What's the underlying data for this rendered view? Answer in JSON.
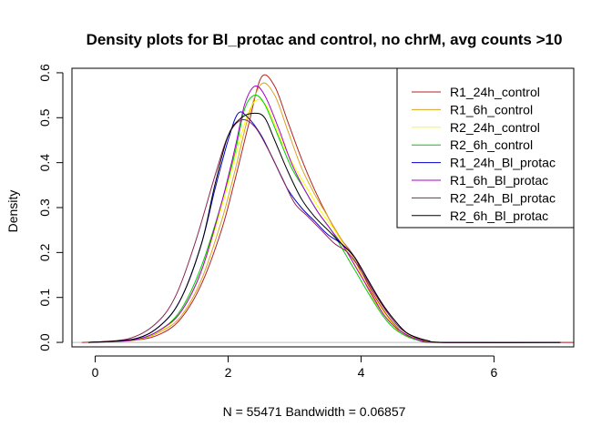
{
  "chart_data": {
    "type": "line",
    "title": "Density plots for Bl_protac and control, no chrM, avg counts >10",
    "xlabel": "N = 55471   Bandwidth = 0.06857",
    "ylabel": "Density",
    "xlim": [
      -0.35,
      7.2
    ],
    "ylim": [
      -0.01,
      0.61
    ],
    "x_ticks": [
      0,
      2,
      4,
      6
    ],
    "x_tick_labels": [
      "0",
      "2",
      "4",
      "6"
    ],
    "y_ticks": [
      0.0,
      0.1,
      0.2,
      0.3,
      0.4,
      0.5,
      0.6
    ],
    "y_tick_labels": [
      "0.0",
      "0.1",
      "0.2",
      "0.3",
      "0.4",
      "0.5",
      "0.6"
    ],
    "grid": false,
    "baseline": 0,
    "legend_position": "top-right",
    "series": [
      {
        "name": "R1_24h_control",
        "color": "#B22222",
        "points": [
          [
            -0.2,
            0
          ],
          [
            0.6,
            0.005
          ],
          [
            1.0,
            0.02
          ],
          [
            1.3,
            0.055
          ],
          [
            1.6,
            0.13
          ],
          [
            1.9,
            0.25
          ],
          [
            2.1,
            0.36
          ],
          [
            2.3,
            0.48
          ],
          [
            2.5,
            0.59
          ],
          [
            2.7,
            0.57
          ],
          [
            2.9,
            0.49
          ],
          [
            3.1,
            0.41
          ],
          [
            3.3,
            0.34
          ],
          [
            3.5,
            0.28
          ],
          [
            3.7,
            0.23
          ],
          [
            3.9,
            0.19
          ],
          [
            4.1,
            0.13
          ],
          [
            4.3,
            0.08
          ],
          [
            4.5,
            0.04
          ],
          [
            4.7,
            0.015
          ],
          [
            5.0,
            0.003
          ],
          [
            5.3,
            0
          ],
          [
            7.2,
            0
          ]
        ]
      },
      {
        "name": "R1_6h_control",
        "color": "#DAA520",
        "points": [
          [
            -0.1,
            0
          ],
          [
            0.6,
            0.005
          ],
          [
            1.0,
            0.025
          ],
          [
            1.3,
            0.06
          ],
          [
            1.6,
            0.14
          ],
          [
            1.9,
            0.27
          ],
          [
            2.1,
            0.38
          ],
          [
            2.3,
            0.5
          ],
          [
            2.5,
            0.575
          ],
          [
            2.7,
            0.55
          ],
          [
            2.9,
            0.47
          ],
          [
            3.1,
            0.39
          ],
          [
            3.3,
            0.33
          ],
          [
            3.5,
            0.28
          ],
          [
            3.7,
            0.23
          ],
          [
            3.9,
            0.185
          ],
          [
            4.1,
            0.12
          ],
          [
            4.3,
            0.07
          ],
          [
            4.5,
            0.035
          ],
          [
            4.7,
            0.012
          ],
          [
            5.0,
            0.002
          ],
          [
            5.3,
            0
          ],
          [
            7.0,
            0
          ]
        ]
      },
      {
        "name": "R2_24h_control",
        "color": "#FFFF00",
        "points": [
          [
            -0.1,
            0
          ],
          [
            0.6,
            0.006
          ],
          [
            1.0,
            0.028
          ],
          [
            1.3,
            0.07
          ],
          [
            1.6,
            0.16
          ],
          [
            1.9,
            0.3
          ],
          [
            2.1,
            0.41
          ],
          [
            2.3,
            0.51
          ],
          [
            2.45,
            0.54
          ],
          [
            2.6,
            0.52
          ],
          [
            2.8,
            0.45
          ],
          [
            3.0,
            0.39
          ],
          [
            3.2,
            0.34
          ],
          [
            3.4,
            0.29
          ],
          [
            3.6,
            0.25
          ],
          [
            3.8,
            0.2
          ],
          [
            4.0,
            0.15
          ],
          [
            4.2,
            0.1
          ],
          [
            4.4,
            0.055
          ],
          [
            4.6,
            0.025
          ],
          [
            4.9,
            0.005
          ],
          [
            5.2,
            0
          ],
          [
            7.0,
            0
          ]
        ]
      },
      {
        "name": "R2_6h_control",
        "color": "#00CC00",
        "points": [
          [
            -0.1,
            0
          ],
          [
            0.6,
            0.006
          ],
          [
            1.0,
            0.03
          ],
          [
            1.3,
            0.075
          ],
          [
            1.6,
            0.17
          ],
          [
            1.9,
            0.31
          ],
          [
            2.1,
            0.42
          ],
          [
            2.25,
            0.52
          ],
          [
            2.4,
            0.55
          ],
          [
            2.55,
            0.53
          ],
          [
            2.75,
            0.46
          ],
          [
            2.95,
            0.39
          ],
          [
            3.15,
            0.34
          ],
          [
            3.35,
            0.29
          ],
          [
            3.55,
            0.25
          ],
          [
            3.75,
            0.2
          ],
          [
            3.95,
            0.15
          ],
          [
            4.15,
            0.1
          ],
          [
            4.35,
            0.055
          ],
          [
            4.55,
            0.025
          ],
          [
            4.85,
            0.005
          ],
          [
            5.2,
            0
          ],
          [
            7.0,
            0
          ]
        ]
      },
      {
        "name": "R1_24h_Bl_protac",
        "color": "#0000CC",
        "points": [
          [
            -0.1,
            0
          ],
          [
            0.6,
            0.008
          ],
          [
            1.0,
            0.04
          ],
          [
            1.3,
            0.1
          ],
          [
            1.6,
            0.22
          ],
          [
            1.8,
            0.34
          ],
          [
            2.0,
            0.45
          ],
          [
            2.15,
            0.51
          ],
          [
            2.3,
            0.5
          ],
          [
            2.5,
            0.46
          ],
          [
            2.7,
            0.4
          ],
          [
            2.9,
            0.34
          ],
          [
            3.1,
            0.3
          ],
          [
            3.3,
            0.27
          ],
          [
            3.5,
            0.24
          ],
          [
            3.7,
            0.22
          ],
          [
            3.9,
            0.19
          ],
          [
            4.1,
            0.14
          ],
          [
            4.3,
            0.09
          ],
          [
            4.5,
            0.05
          ],
          [
            4.7,
            0.02
          ],
          [
            5.0,
            0.004
          ],
          [
            5.3,
            0
          ],
          [
            7.0,
            0
          ]
        ]
      },
      {
        "name": "R1_6h_Bl_protac",
        "color": "#AA00CC",
        "points": [
          [
            -0.1,
            0
          ],
          [
            0.6,
            0.006
          ],
          [
            1.0,
            0.03
          ],
          [
            1.3,
            0.07
          ],
          [
            1.6,
            0.16
          ],
          [
            1.9,
            0.31
          ],
          [
            2.1,
            0.43
          ],
          [
            2.25,
            0.53
          ],
          [
            2.4,
            0.57
          ],
          [
            2.55,
            0.55
          ],
          [
            2.75,
            0.48
          ],
          [
            2.95,
            0.4
          ],
          [
            3.15,
            0.34
          ],
          [
            3.35,
            0.29
          ],
          [
            3.55,
            0.25
          ],
          [
            3.75,
            0.21
          ],
          [
            3.95,
            0.16
          ],
          [
            4.15,
            0.11
          ],
          [
            4.35,
            0.06
          ],
          [
            4.55,
            0.03
          ],
          [
            4.85,
            0.006
          ],
          [
            5.2,
            0
          ],
          [
            7.0,
            0
          ]
        ]
      },
      {
        "name": "R2_24h_Bl_protac",
        "color": "#8B2252",
        "points": [
          [
            -0.1,
            0
          ],
          [
            0.5,
            0.008
          ],
          [
            0.9,
            0.04
          ],
          [
            1.2,
            0.1
          ],
          [
            1.5,
            0.22
          ],
          [
            1.8,
            0.37
          ],
          [
            2.0,
            0.46
          ],
          [
            2.2,
            0.495
          ],
          [
            2.4,
            0.48
          ],
          [
            2.6,
            0.43
          ],
          [
            2.8,
            0.37
          ],
          [
            3.0,
            0.31
          ],
          [
            3.2,
            0.28
          ],
          [
            3.4,
            0.25
          ],
          [
            3.6,
            0.22
          ],
          [
            3.8,
            0.2
          ],
          [
            4.0,
            0.16
          ],
          [
            4.2,
            0.11
          ],
          [
            4.4,
            0.065
          ],
          [
            4.6,
            0.03
          ],
          [
            4.9,
            0.006
          ],
          [
            5.2,
            0
          ],
          [
            7.0,
            0
          ]
        ]
      },
      {
        "name": "R2_6h_Bl_protac",
        "color": "#000000",
        "points": [
          [
            -0.1,
            0
          ],
          [
            0.6,
            0.008
          ],
          [
            1.0,
            0.04
          ],
          [
            1.3,
            0.1
          ],
          [
            1.6,
            0.22
          ],
          [
            1.8,
            0.35
          ],
          [
            2.0,
            0.46
          ],
          [
            2.2,
            0.5
          ],
          [
            2.4,
            0.51
          ],
          [
            2.55,
            0.5
          ],
          [
            2.7,
            0.45
          ],
          [
            2.9,
            0.38
          ],
          [
            3.1,
            0.32
          ],
          [
            3.3,
            0.28
          ],
          [
            3.5,
            0.25
          ],
          [
            3.7,
            0.22
          ],
          [
            3.9,
            0.19
          ],
          [
            4.1,
            0.14
          ],
          [
            4.3,
            0.09
          ],
          [
            4.5,
            0.05
          ],
          [
            4.7,
            0.02
          ],
          [
            5.0,
            0.004
          ],
          [
            5.3,
            0
          ],
          [
            7.0,
            0
          ]
        ]
      }
    ]
  }
}
